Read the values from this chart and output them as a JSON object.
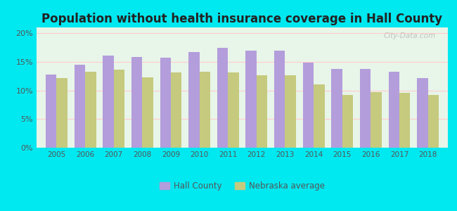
{
  "title": "Population without health insurance coverage in Hall County",
  "years": [
    2005,
    2006,
    2007,
    2008,
    2009,
    2010,
    2011,
    2012,
    2013,
    2014,
    2015,
    2016,
    2017,
    2018
  ],
  "hall_county": [
    12.8,
    14.5,
    16.1,
    15.9,
    15.7,
    16.7,
    17.5,
    17.0,
    17.0,
    14.9,
    13.8,
    13.7,
    13.3,
    12.2
  ],
  "nebraska_avg": [
    12.2,
    13.3,
    13.6,
    12.3,
    13.2,
    13.3,
    13.2,
    12.7,
    12.7,
    11.0,
    9.2,
    9.7,
    9.6,
    9.2
  ],
  "hall_color": "#b39ddb",
  "nebraska_color": "#c5ca7e",
  "background_outer": "#00e8f0",
  "background_plot": "#e8f5e9",
  "title_fontsize": 12,
  "ylim": [
    0,
    21
  ],
  "yticks": [
    0,
    5,
    10,
    15,
    20
  ],
  "ytick_labels": [
    "0%",
    "5%",
    "10%",
    "15%",
    "20%"
  ],
  "bar_width": 0.38,
  "watermark": "City-Data.com"
}
